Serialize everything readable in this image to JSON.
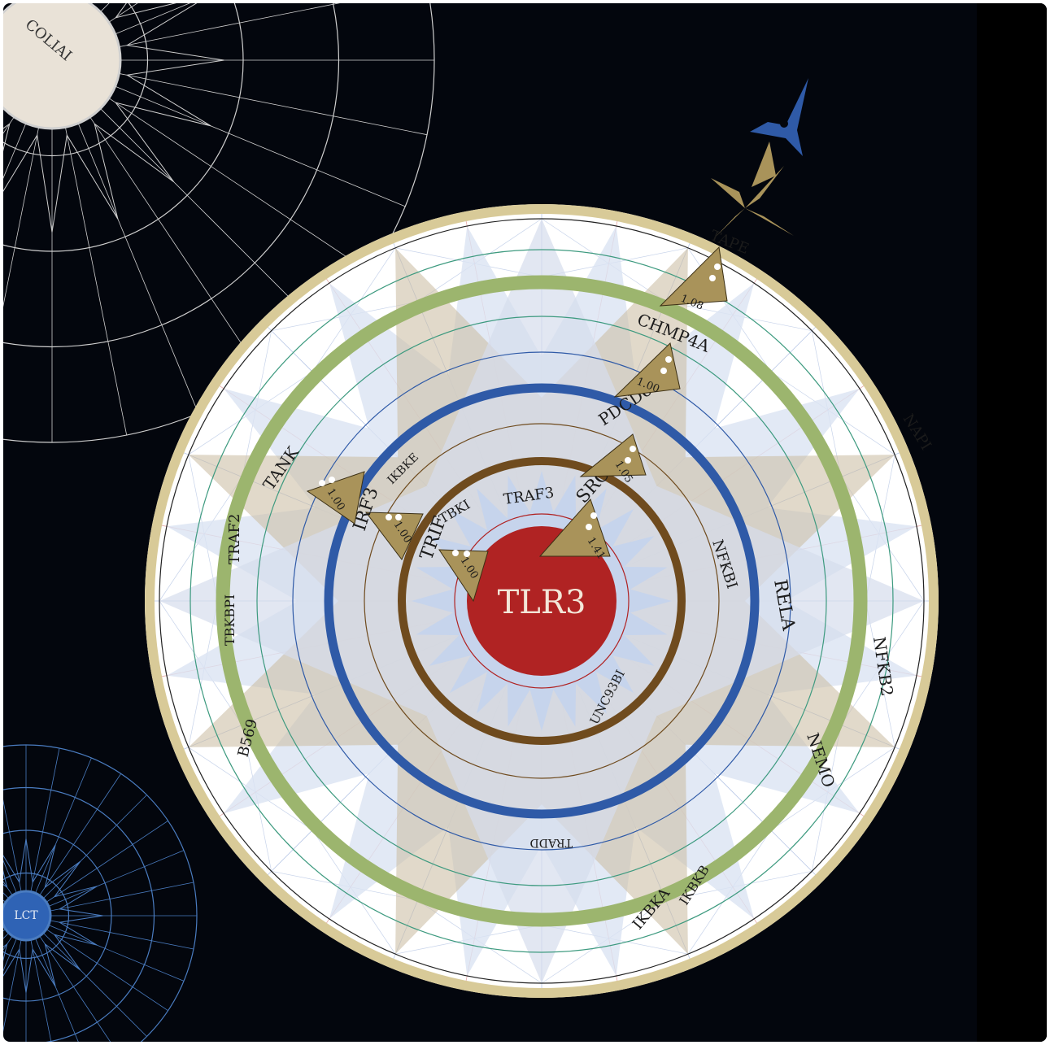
{
  "center": {
    "label": "TLR3"
  },
  "colors": {
    "background": "#03060d",
    "center": "#b02323",
    "ring_brown": "#6f4b1e",
    "ring_blue": "#2f5aa7",
    "ring_green": "#9cb56e",
    "ring_tan": "#d8ca98",
    "marker": "#a9935a",
    "compass_white": "#e8e8e8",
    "compass_blue": "#4a7cc0"
  },
  "satellites": [
    {
      "label": "COLIAI"
    },
    {
      "label": "LCT"
    }
  ],
  "nodes": [
    {
      "label": "SRC",
      "score": "1.41"
    },
    {
      "label": "TRIF",
      "score": "1.00"
    },
    {
      "label": "IRF3",
      "score": "1.00"
    },
    {
      "label": "PDCD6IP",
      "score": "1.05"
    },
    {
      "label": "TANK",
      "score": "1.00"
    },
    {
      "label": "CHMP4A",
      "score": "1.00"
    },
    {
      "label": "TAPE",
      "score": "1.08"
    },
    {
      "label": "TRAF3"
    },
    {
      "label": "TBKI"
    },
    {
      "label": "IKBKE"
    },
    {
      "label": "NFKBI"
    },
    {
      "label": "UNC93BI"
    },
    {
      "label": "RELA"
    },
    {
      "label": "TRADD"
    },
    {
      "label": "NAPI"
    },
    {
      "label": "NFKB2"
    },
    {
      "label": "NEMO"
    },
    {
      "label": "IKBKB"
    },
    {
      "label": "IKBKA"
    },
    {
      "label": "TRAF2"
    },
    {
      "label": "TBKBPI"
    },
    {
      "label": "B569"
    }
  ]
}
